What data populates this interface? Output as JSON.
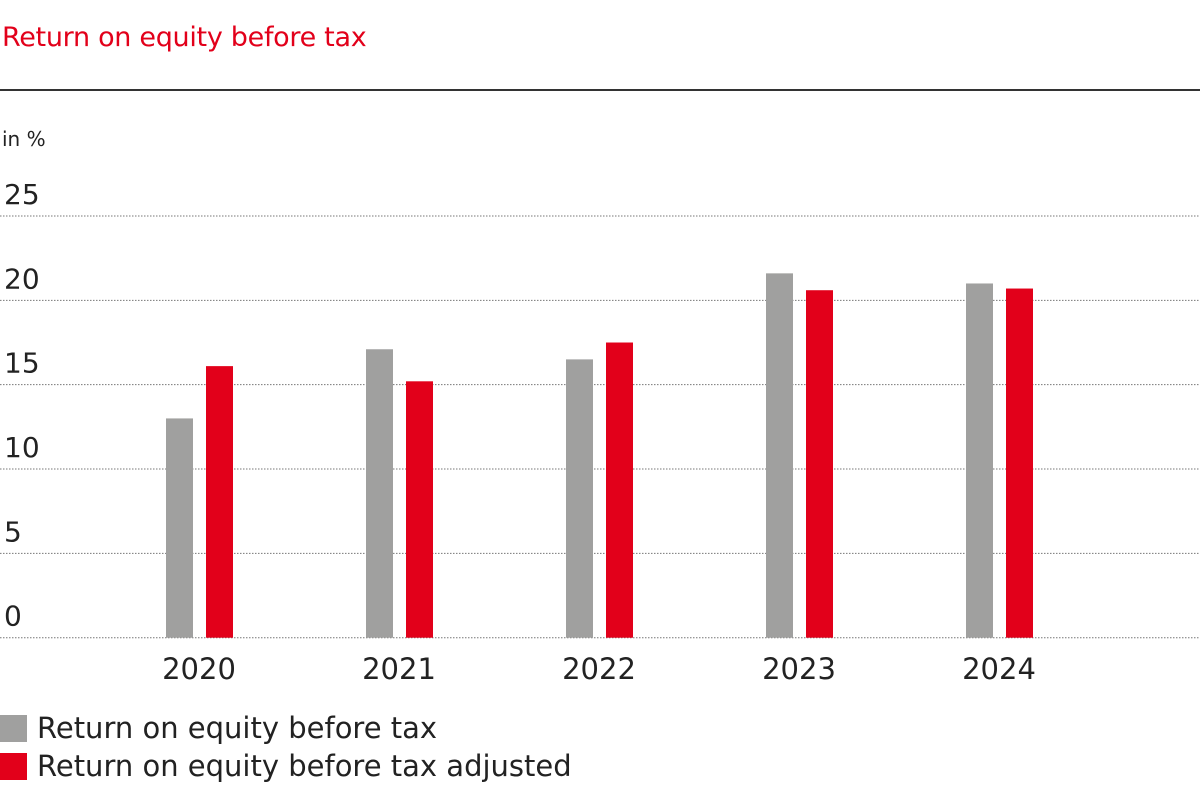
{
  "chart_data": {
    "type": "bar",
    "title": "Return on equity before tax",
    "ylabel": "in %",
    "categories": [
      "2020",
      "2021",
      "2022",
      "2023",
      "2024"
    ],
    "ylim": [
      0,
      25
    ],
    "yticks": [
      "0",
      "5",
      "10",
      "15",
      "20",
      "25"
    ],
    "grid": true,
    "legend_placement": "bottom-left",
    "series": [
      {
        "name": "Return on equity before tax",
        "color": "#a0a09f",
        "values": [
          13.0,
          17.1,
          16.5,
          21.6,
          21.0
        ]
      },
      {
        "name": "Return on equity before tax adjusted",
        "color": "#e2001a",
        "values": [
          16.1,
          15.2,
          17.5,
          20.6,
          20.7
        ]
      }
    ]
  }
}
